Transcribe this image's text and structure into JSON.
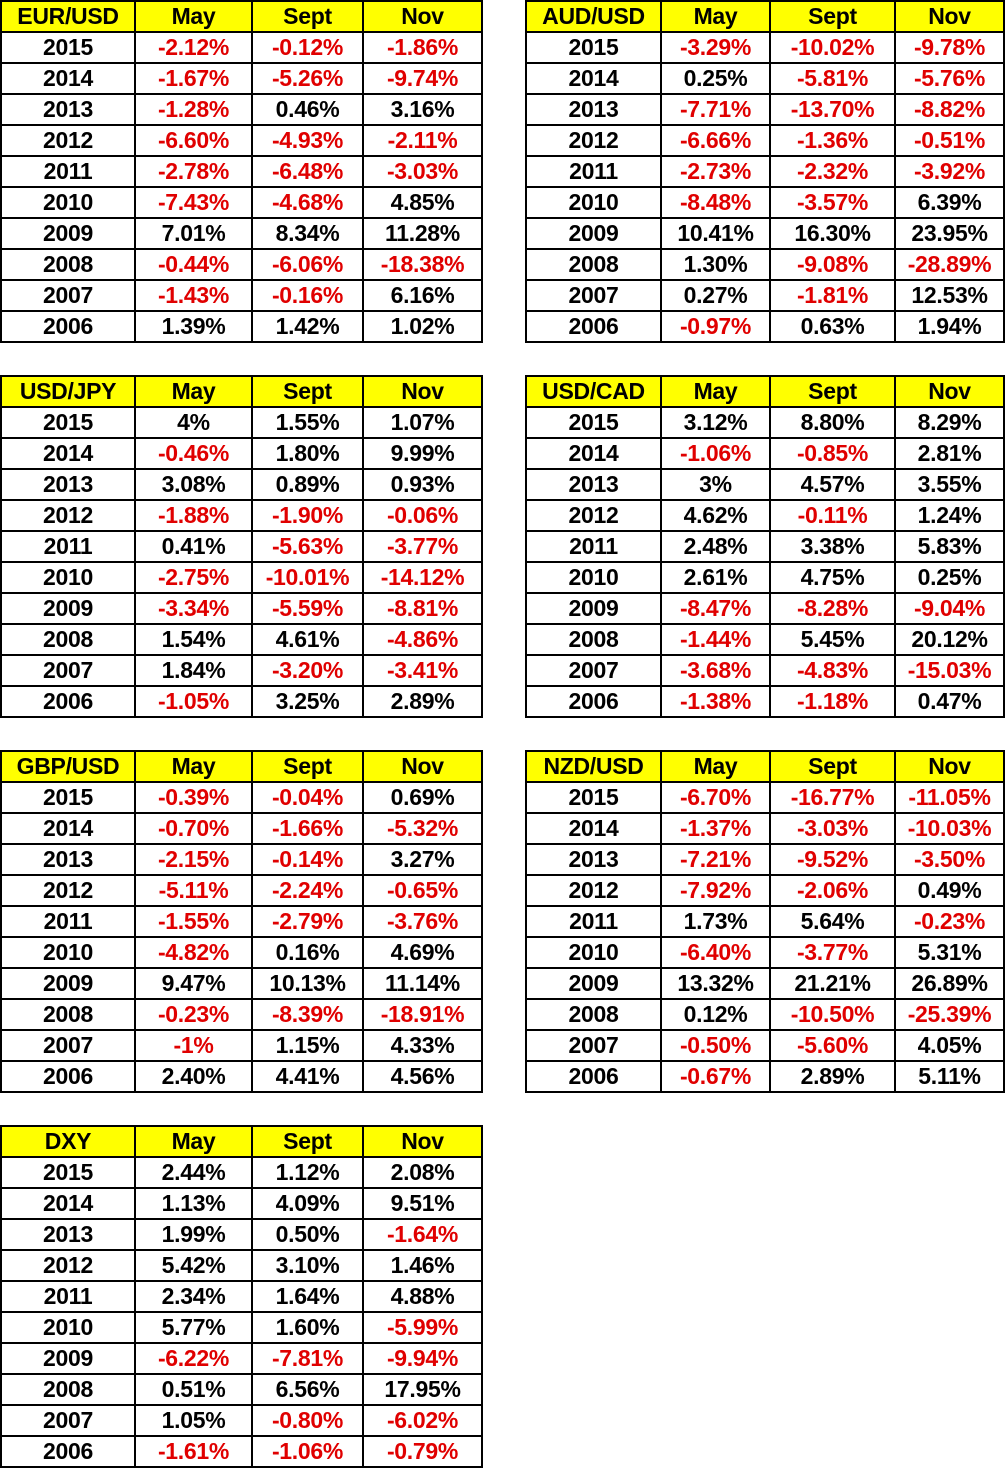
{
  "tables": [
    {
      "header": [
        "EUR/USD",
        "May",
        "Sept",
        "Nov"
      ],
      "rows": [
        [
          "2015",
          "-2.12%",
          "-0.12%",
          "-1.86%"
        ],
        [
          "2014",
          "-1.67%",
          "-5.26%",
          "-9.74%"
        ],
        [
          "2013",
          "-1.28%",
          "0.46%",
          "3.16%"
        ],
        [
          "2012",
          "-6.60%",
          "-4.93%",
          "-2.11%"
        ],
        [
          "2011",
          "-2.78%",
          "-6.48%",
          "-3.03%"
        ],
        [
          "2010",
          "-7.43%",
          "-4.68%",
          "4.85%"
        ],
        [
          "2009",
          "7.01%",
          "8.34%",
          "11.28%"
        ],
        [
          "2008",
          "-0.44%",
          "-6.06%",
          "-18.38%"
        ],
        [
          "2007",
          "-1.43%",
          "-0.16%",
          "6.16%"
        ],
        [
          "2006",
          "1.39%",
          "1.42%",
          "1.02%"
        ]
      ]
    },
    {
      "header": [
        "AUD/USD",
        "May",
        "Sept",
        "Nov"
      ],
      "rows": [
        [
          "2015",
          "-3.29%",
          "-10.02%",
          "-9.78%"
        ],
        [
          "2014",
          "0.25%",
          "-5.81%",
          "-5.76%"
        ],
        [
          "2013",
          "-7.71%",
          "-13.70%",
          "-8.82%"
        ],
        [
          "2012",
          "-6.66%",
          "-1.36%",
          "-0.51%"
        ],
        [
          "2011",
          "-2.73%",
          "-2.32%",
          "-3.92%"
        ],
        [
          "2010",
          "-8.48%",
          "-3.57%",
          "6.39%"
        ],
        [
          "2009",
          "10.41%",
          "16.30%",
          "23.95%"
        ],
        [
          "2008",
          "1.30%",
          "-9.08%",
          "-28.89%"
        ],
        [
          "2007",
          "0.27%",
          "-1.81%",
          "12.53%"
        ],
        [
          "2006",
          "-0.97%",
          "0.63%",
          "1.94%"
        ]
      ]
    },
    {
      "header": [
        "USD/JPY",
        "May",
        "Sept",
        "Nov"
      ],
      "rows": [
        [
          "2015",
          "4%",
          "1.55%",
          "1.07%"
        ],
        [
          "2014",
          "-0.46%",
          "1.80%",
          "9.99%"
        ],
        [
          "2013",
          "3.08%",
          "0.89%",
          "0.93%"
        ],
        [
          "2012",
          "-1.88%",
          "-1.90%",
          "-0.06%"
        ],
        [
          "2011",
          "0.41%",
          "-5.63%",
          "-3.77%"
        ],
        [
          "2010",
          "-2.75%",
          "-10.01%",
          "-14.12%"
        ],
        [
          "2009",
          "-3.34%",
          "-5.59%",
          "-8.81%"
        ],
        [
          "2008",
          "1.54%",
          "4.61%",
          "-4.86%"
        ],
        [
          "2007",
          "1.84%",
          "-3.20%",
          "-3.41%"
        ],
        [
          "2006",
          "-1.05%",
          "3.25%",
          "2.89%"
        ]
      ]
    },
    {
      "header": [
        "USD/CAD",
        "May",
        "Sept",
        "Nov"
      ],
      "rows": [
        [
          "2015",
          "3.12%",
          "8.80%",
          "8.29%"
        ],
        [
          "2014",
          "-1.06%",
          "-0.85%",
          "2.81%"
        ],
        [
          "2013",
          "3%",
          "4.57%",
          "3.55%"
        ],
        [
          "2012",
          "4.62%",
          "-0.11%",
          "1.24%"
        ],
        [
          "2011",
          "2.48%",
          "3.38%",
          "5.83%"
        ],
        [
          "2010",
          "2.61%",
          "4.75%",
          "0.25%"
        ],
        [
          "2009",
          "-8.47%",
          "-8.28%",
          "-9.04%"
        ],
        [
          "2008",
          "-1.44%",
          "5.45%",
          "20.12%"
        ],
        [
          "2007",
          "-3.68%",
          "-4.83%",
          "-15.03%"
        ],
        [
          "2006",
          "-1.38%",
          "-1.18%",
          "0.47%"
        ]
      ]
    },
    {
      "header": [
        "GBP/USD",
        "May",
        "Sept",
        "Nov"
      ],
      "rows": [
        [
          "2015",
          "-0.39%",
          "-0.04%",
          "0.69%"
        ],
        [
          "2014",
          "-0.70%",
          "-1.66%",
          "-5.32%"
        ],
        [
          "2013",
          "-2.15%",
          "-0.14%",
          "3.27%"
        ],
        [
          "2012",
          "-5.11%",
          "-2.24%",
          "-0.65%"
        ],
        [
          "2011",
          "-1.55%",
          "-2.79%",
          "-3.76%"
        ],
        [
          "2010",
          "-4.82%",
          "0.16%",
          "4.69%"
        ],
        [
          "2009",
          "9.47%",
          "10.13%",
          "11.14%"
        ],
        [
          "2008",
          "-0.23%",
          "-8.39%",
          "-18.91%"
        ],
        [
          "2007",
          "-1%",
          "1.15%",
          "4.33%"
        ],
        [
          "2006",
          "2.40%",
          "4.41%",
          "4.56%"
        ]
      ]
    },
    {
      "header": [
        "NZD/USD",
        "May",
        "Sept",
        "Nov"
      ],
      "rows": [
        [
          "2015",
          "-6.70%",
          "-16.77%",
          "-11.05%"
        ],
        [
          "2014",
          "-1.37%",
          "-3.03%",
          "-10.03%"
        ],
        [
          "2013",
          "-7.21%",
          "-9.52%",
          "-3.50%"
        ],
        [
          "2012",
          "-7.92%",
          "-2.06%",
          "0.49%"
        ],
        [
          "2011",
          "1.73%",
          "5.64%",
          "-0.23%"
        ],
        [
          "2010",
          "-6.40%",
          "-3.77%",
          "5.31%"
        ],
        [
          "2009",
          "13.32%",
          "21.21%",
          "26.89%"
        ],
        [
          "2008",
          "0.12%",
          "-10.50%",
          "-25.39%"
        ],
        [
          "2007",
          "-0.50%",
          "-5.60%",
          "4.05%"
        ],
        [
          "2006",
          "-0.67%",
          "2.89%",
          "5.11%"
        ]
      ]
    },
    {
      "header": [
        "DXY",
        "May",
        "Sept",
        "Nov"
      ],
      "rows": [
        [
          "2015",
          "2.44%",
          "1.12%",
          "2.08%"
        ],
        [
          "2014",
          "1.13%",
          "4.09%",
          "9.51%"
        ],
        [
          "2013",
          "1.99%",
          "0.50%",
          "-1.64%"
        ],
        [
          "2012",
          "5.42%",
          "3.10%",
          "1.46%"
        ],
        [
          "2011",
          "2.34%",
          "1.64%",
          "4.88%"
        ],
        [
          "2010",
          "5.77%",
          "1.60%",
          "-5.99%"
        ],
        [
          "2009",
          "-6.22%",
          "-7.81%",
          "-9.94%"
        ],
        [
          "2008",
          "0.51%",
          "6.56%",
          "17.95%"
        ],
        [
          "2007",
          "1.05%",
          "-0.80%",
          "-6.02%"
        ],
        [
          "2006",
          "-1.61%",
          "-1.06%",
          "-0.79%"
        ]
      ]
    }
  ]
}
